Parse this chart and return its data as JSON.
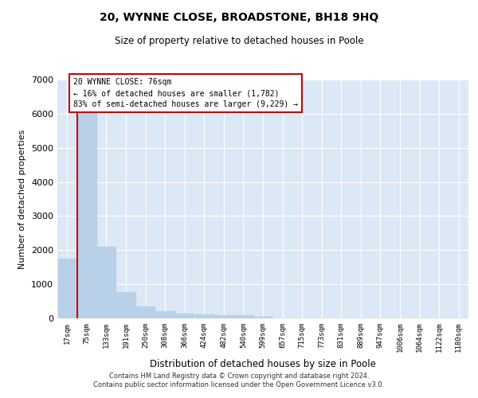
{
  "title": "20, WYNNE CLOSE, BROADSTONE, BH18 9HQ",
  "subtitle": "Size of property relative to detached houses in Poole",
  "xlabel": "Distribution of detached houses by size in Poole",
  "ylabel": "Number of detached properties",
  "footer_line1": "Contains HM Land Registry data © Crown copyright and database right 2024.",
  "footer_line2": "Contains public sector information licensed under the Open Government Licence v3.0.",
  "annotation_line1": "20 WYNNE CLOSE: 76sqm",
  "annotation_line2": "← 16% of detached houses are smaller (1,782)",
  "annotation_line3": "83% of semi-detached houses are larger (9,229) →",
  "bar_color": "#b8d0e8",
  "vline_color": "#cc0000",
  "vline_x": 0.5,
  "annotation_box_color": "#cc0000",
  "background_color": "#dce8f5",
  "categories": [
    "17sqm",
    "75sqm",
    "133sqm",
    "191sqm",
    "250sqm",
    "308sqm",
    "366sqm",
    "424sqm",
    "482sqm",
    "540sqm",
    "599sqm",
    "657sqm",
    "715sqm",
    "773sqm",
    "831sqm",
    "889sqm",
    "947sqm",
    "1006sqm",
    "1064sqm",
    "1122sqm",
    "1180sqm"
  ],
  "values": [
    1750,
    6150,
    2100,
    780,
    360,
    220,
    150,
    115,
    105,
    85,
    55,
    0,
    0,
    0,
    0,
    0,
    0,
    0,
    0,
    0,
    0
  ],
  "ylim": [
    0,
    7000
  ],
  "yticks": [
    0,
    1000,
    2000,
    3000,
    4000,
    5000,
    6000,
    7000
  ]
}
